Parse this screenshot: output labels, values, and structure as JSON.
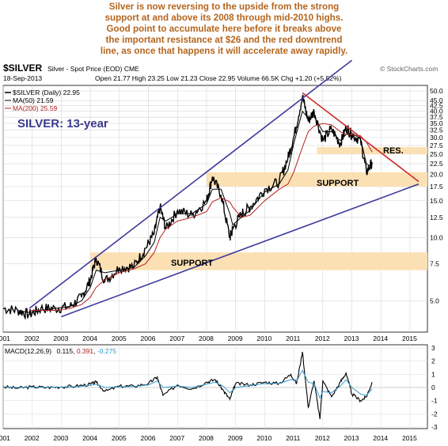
{
  "annotation_lines": [
    "Silver is now reversing to the upside from the strong",
    "support at and above its 2008 through mid-2010 highs.",
    "Good point to accumulate here before it breaks above",
    "the important resistance at $26 and the red downtrend",
    "line, as once that happens it will accelerate away rapidly."
  ],
  "header": {
    "symbol": "$SILVER",
    "desc": "Silver - Spot Price (EOD)  CME",
    "date": "18-Sep-2013",
    "ohlc": "Open 21.77  High 23.25  Low 21.23  Close 22.95  Volume 66.5K  Chg +1.20 (+5.52%)",
    "credit": "© StockCharts.com"
  },
  "legend": [
    {
      "label": "$SILVER (Daily) 22.95",
      "color": "#000000"
    },
    {
      "label": "MA(50) 21.59",
      "color": "#000000"
    },
    {
      "label": "MA(200) 25.59",
      "color": "#b22222"
    }
  ],
  "chart_title": "SILVER: 13-year",
  "labels": {
    "support_upper": "SUPPORT",
    "support_lower": "SUPPORT",
    "resistance": "RES."
  },
  "macd_legend": {
    "prefix": "MACD(12,26,9)",
    "v1": "0.115",
    "v2": "0.391",
    "v3": "-0.275"
  },
  "colors": {
    "channel": "#3c3c9c",
    "downtrend": "#cc2b2b",
    "band": "#fbe0b4",
    "title": "#3a3a8c",
    "annotation": "#b5651d",
    "ma200": "#b22222",
    "signal": "#3399cc"
  },
  "chart_data": [
    {
      "type": "line",
      "title": "SILVER: 13-year",
      "y_scale": "log",
      "x": [
        2001.0,
        2001.5,
        2001.9,
        2002.3,
        2002.8,
        2003.3,
        2003.7,
        2004.0,
        2004.2,
        2004.5,
        2005.0,
        2005.5,
        2005.9,
        2006.2,
        2006.4,
        2006.6,
        2007.0,
        2007.5,
        2008.0,
        2008.2,
        2008.5,
        2008.8,
        2008.9,
        2009.2,
        2009.5,
        2010.0,
        2010.5,
        2010.8,
        2011.0,
        2011.3,
        2011.5,
        2011.7,
        2012.0,
        2012.3,
        2012.6,
        2012.8,
        2013.0,
        2013.3,
        2013.5,
        2013.7
      ],
      "series": [
        {
          "name": "$SILVER (Daily)",
          "values": [
            4.6,
            4.5,
            4.3,
            4.6,
            4.6,
            4.7,
            5.2,
            6.3,
            8.0,
            6.2,
            7.2,
            7.3,
            8.9,
            10.5,
            14.0,
            11.0,
            13.5,
            12.8,
            15.0,
            19.5,
            16.0,
            10.0,
            11.0,
            13.0,
            14.0,
            17.0,
            18.5,
            24.0,
            30.0,
            47.0,
            36.0,
            40.0,
            29.0,
            33.0,
            28.0,
            33.5,
            31.0,
            29.0,
            20.5,
            22.9
          ]
        },
        {
          "name": "MA(50)",
          "values": [
            null,
            4.5,
            4.4,
            4.5,
            4.6,
            4.7,
            5.0,
            5.8,
            7.0,
            6.8,
            7.0,
            7.2,
            8.2,
            9.5,
            12.5,
            12.0,
            13.0,
            13.0,
            14.5,
            17.0,
            17.0,
            13.0,
            11.5,
            12.5,
            13.5,
            16.5,
            18.0,
            21.0,
            28.0,
            40.0,
            37.0,
            38.0,
            32.0,
            32.0,
            29.0,
            31.0,
            31.5,
            29.5,
            22.5,
            21.6
          ]
        },
        {
          "name": "MA(200)",
          "values": [
            null,
            null,
            4.5,
            4.5,
            4.5,
            4.6,
            4.8,
            5.2,
            5.8,
            6.3,
            6.8,
            7.1,
            7.5,
            8.5,
            10.0,
            11.0,
            12.0,
            12.5,
            13.3,
            14.8,
            15.5,
            14.8,
            14.0,
            12.5,
            12.8,
            15.0,
            17.0,
            18.0,
            20.5,
            27.0,
            32.0,
            34.0,
            35.0,
            34.5,
            32.0,
            31.0,
            31.0,
            30.5,
            28.5,
            25.6
          ]
        }
      ],
      "xlabel": "",
      "ylabel": "",
      "xticks": [
        "2001",
        "2002",
        "2003",
        "2004",
        "2005",
        "2006",
        "2007",
        "2008",
        "2009",
        "2010",
        "2011",
        "2012",
        "2013",
        "2014",
        "2015"
      ],
      "yticks": [
        "50.0",
        "45.0",
        "42.5",
        "40.0",
        "37.5",
        "35.0",
        "32.5",
        "30.0",
        "27.5",
        "25.0",
        "22.5",
        "20.0",
        "17.5",
        "15.0",
        "12.5",
        "10.0",
        "7.5",
        "5.0"
      ],
      "support_bands": [
        {
          "from": 17.5,
          "to": 20.5,
          "start": 2008.0
        },
        {
          "from": 7.0,
          "to": 8.5,
          "start": 2004.0
        }
      ],
      "resistance_band": {
        "from": 25.0,
        "to": 27.0,
        "start": 2011.8
      },
      "trendlines": [
        {
          "name": "channel-upper",
          "from": [
            2001.9,
            4.6
          ],
          "to": [
            2013.0,
            70.0
          ]
        },
        {
          "name": "channel-lower",
          "from": [
            2003.0,
            4.2
          ],
          "to": [
            2015.3,
            18.0
          ]
        },
        {
          "name": "downtrend",
          "from": [
            2011.3,
            49.0
          ],
          "to": [
            2015.3,
            18.5
          ]
        }
      ],
      "grid": true
    },
    {
      "type": "line",
      "title": "MACD(12,26,9)",
      "x": [
        2001.0,
        2001.5,
        2002.0,
        2002.5,
        2003.0,
        2003.5,
        2004.0,
        2004.2,
        2004.5,
        2005.0,
        2005.5,
        2006.0,
        2006.3,
        2006.5,
        2007.0,
        2007.5,
        2008.0,
        2008.3,
        2008.6,
        2008.8,
        2009.0,
        2009.5,
        2010.0,
        2010.5,
        2010.9,
        2011.1,
        2011.3,
        2011.5,
        2011.7,
        2011.9,
        2012.0,
        2012.3,
        2012.6,
        2012.8,
        2013.0,
        2013.3,
        2013.5,
        2013.7
      ],
      "series": [
        {
          "name": "MACD",
          "values": [
            0.05,
            -0.05,
            0.05,
            0.0,
            0.05,
            0.1,
            0.25,
            0.4,
            -0.3,
            0.1,
            0.1,
            0.3,
            0.8,
            -0.6,
            0.2,
            -0.1,
            0.4,
            0.6,
            -0.3,
            -0.9,
            0.3,
            0.2,
            0.4,
            0.3,
            1.0,
            0.3,
            2.7,
            -1.5,
            0.5,
            -2.4,
            0.5,
            -0.7,
            0.4,
            1.1,
            -0.5,
            -1.0,
            -0.7,
            0.4
          ]
        },
        {
          "name": "Signal",
          "values": [
            0.05,
            0.0,
            0.02,
            0.01,
            0.03,
            0.06,
            0.15,
            0.25,
            0.0,
            0.05,
            0.08,
            0.2,
            0.5,
            0.0,
            0.1,
            0.0,
            0.25,
            0.4,
            0.05,
            -0.4,
            0.0,
            0.15,
            0.3,
            0.3,
            0.6,
            0.5,
            1.3,
            0.4,
            0.3,
            -0.8,
            -0.3,
            -0.4,
            0.1,
            0.6,
            0.0,
            -0.5,
            -0.6,
            -0.1
          ]
        }
      ],
      "yticks": [
        "3",
        "2",
        "1",
        "0",
        "-1",
        "-2",
        "-3"
      ],
      "ylim": [
        -3,
        3
      ],
      "xticks": [
        "2001",
        "2002",
        "2003",
        "2004",
        "2005",
        "2006",
        "2007",
        "2008",
        "2009",
        "2010",
        "2011",
        "2012",
        "2013",
        "2014",
        "2015"
      ]
    }
  ]
}
